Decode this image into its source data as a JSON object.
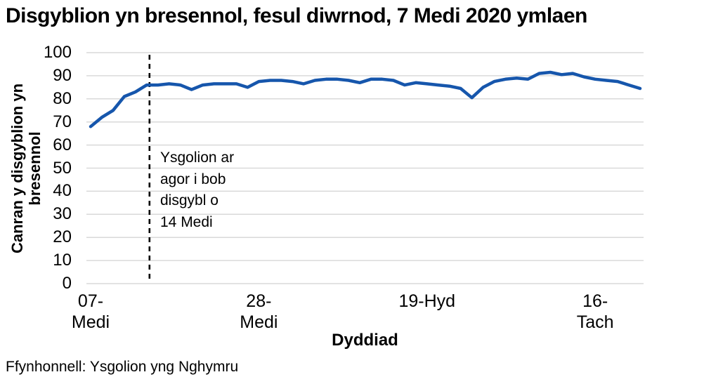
{
  "title": "Disgyblion yn bresennol, fesul diwrnod, 7 Medi 2020 ymlaen",
  "source": "Ffynhonnell: Ysgolion yng Nghymru",
  "colors": {
    "line": "#1656ac",
    "grid": "#d9d9d9",
    "dashed_line": "#000000",
    "text": "#000000",
    "background": "#ffffff"
  },
  "chart_data": {
    "type": "line",
    "title": "Disgyblion yn bresennol, fesul diwrnod, 7 Medi 2020 ymlaen",
    "xlabel": "Dyddiad",
    "ylabel": "Canran y disgyblion yn\nbresennol",
    "ylim": [
      0,
      100
    ],
    "ytick_step": 10,
    "grid": true,
    "legend": "none",
    "x_unit": "school days from 7 Medi 2020 to 20 Tach 2020 (half-term week excluded)",
    "x_ticks": [
      {
        "index": 0,
        "label": "07-\nMedi"
      },
      {
        "index": 15,
        "label": "28-\nMedi"
      },
      {
        "index": 30,
        "label": "19-Hyd"
      },
      {
        "index": 45,
        "label": "16-\nTach"
      }
    ],
    "annotation": {
      "text": "Ysgolion ar\nagor i bob\ndisgybl o\n14 Medi",
      "at_index": 5,
      "line_style": "dashed-vertical"
    },
    "values": [
      68,
      72,
      75,
      81,
      83,
      86,
      86,
      86.5,
      86,
      84,
      86,
      86.5,
      86.5,
      86.5,
      85,
      87.5,
      88,
      88,
      87.5,
      86.5,
      88,
      88.5,
      88.5,
      88,
      87,
      88.5,
      88.5,
      88,
      86,
      87,
      86.5,
      86,
      85.5,
      84.5,
      80.5,
      85,
      87.5,
      88.5,
      89,
      88.5,
      91,
      91.5,
      90.5,
      91,
      89.5,
      88.5,
      88,
      87.5,
      86,
      84.5
    ]
  }
}
